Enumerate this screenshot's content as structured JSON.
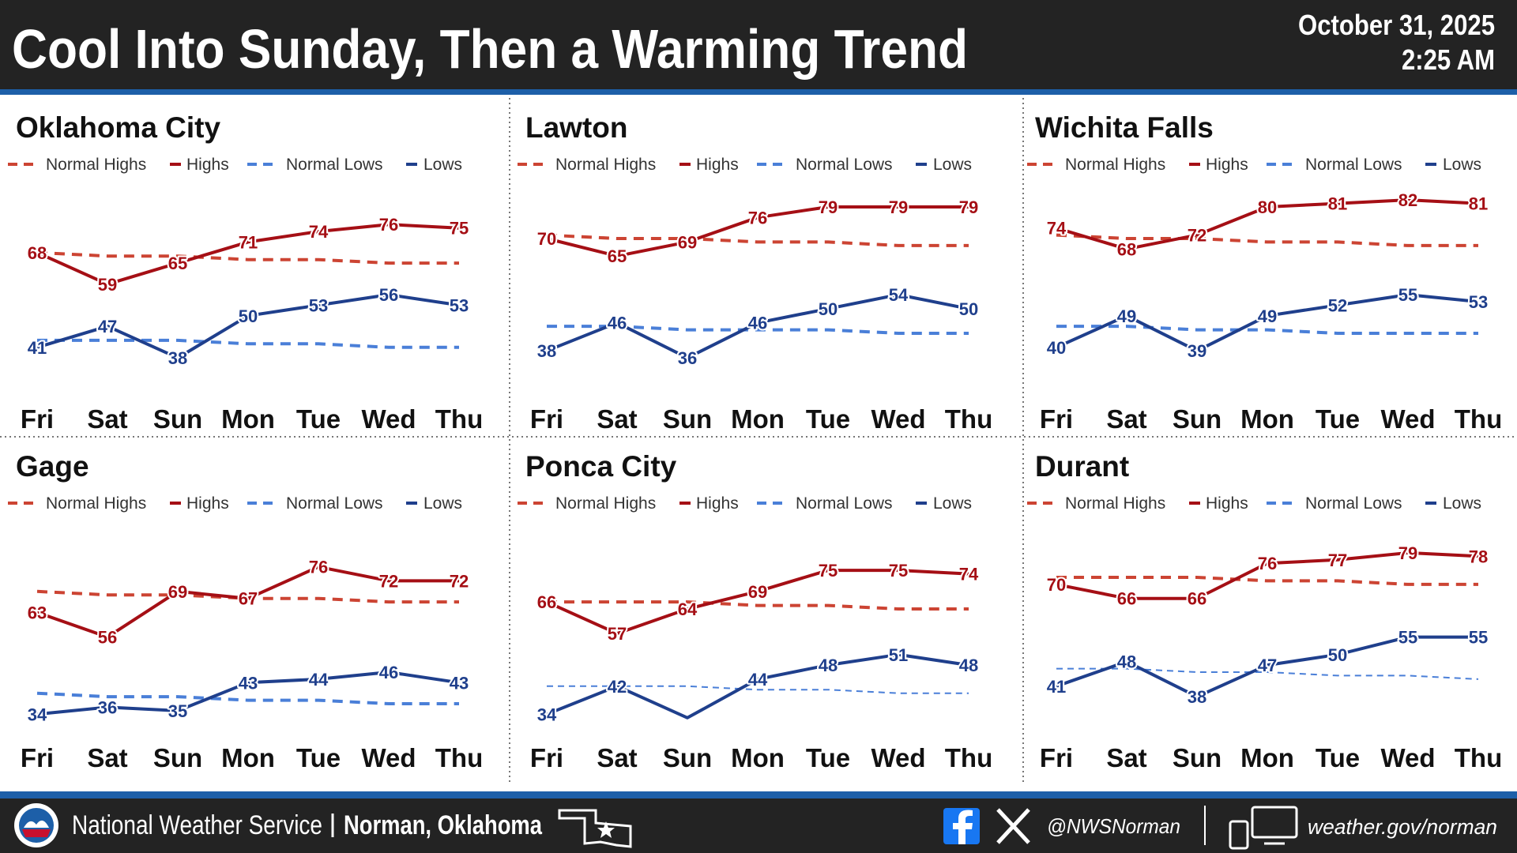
{
  "header": {
    "title": "Cool Into Sunday, Then a Warming Trend",
    "date": "October 31, 2025",
    "time": "2:25 AM"
  },
  "chart_data": [
    {
      "type": "line",
      "title": "Oklahoma City",
      "categories": [
        "Fri",
        "Sat",
        "Sun",
        "Mon",
        "Tue",
        "Wed",
        "Thu"
      ],
      "ylim": [
        36,
        90
      ],
      "series": [
        {
          "name": "Normal Highs",
          "color": "#cc4433",
          "style": "dashed",
          "values": [
            68,
            67,
            67,
            66,
            66,
            65,
            65
          ]
        },
        {
          "name": "Highs",
          "color": "#a50f15",
          "style": "solid",
          "values": [
            68,
            59,
            65,
            71,
            74,
            76,
            75
          ]
        },
        {
          "name": "Normal Lows",
          "color": "#4a7fd8",
          "style": "dashed",
          "values": [
            43,
            43,
            43,
            42,
            42,
            41,
            41
          ]
        },
        {
          "name": "Lows",
          "color": "#1f3f8c",
          "style": "solid",
          "values": [
            41,
            47,
            38,
            50,
            53,
            56,
            53
          ]
        }
      ]
    },
    {
      "type": "line",
      "title": "Lawton",
      "categories": [
        "Fri",
        "Sat",
        "Sun",
        "Mon",
        "Tue",
        "Wed",
        "Thu"
      ],
      "ylim": [
        34,
        88
      ],
      "series": [
        {
          "name": "Normal Highs",
          "color": "#cc4433",
          "style": "dashed",
          "values": [
            71,
            70,
            70,
            69,
            69,
            68,
            68
          ]
        },
        {
          "name": "Highs",
          "color": "#a50f15",
          "style": "solid",
          "values": [
            70,
            65,
            69,
            76,
            79,
            79,
            79
          ]
        },
        {
          "name": "Normal Lows",
          "color": "#4a7fd8",
          "style": "dashed",
          "values": [
            45,
            45,
            44,
            44,
            44,
            43,
            43
          ]
        },
        {
          "name": "Lows",
          "color": "#1f3f8c",
          "style": "solid",
          "values": [
            38,
            46,
            36,
            46,
            50,
            54,
            50
          ]
        }
      ]
    },
    {
      "type": "line",
      "title": "Wichita Falls",
      "categories": [
        "Fri",
        "Sat",
        "Sun",
        "Mon",
        "Tue",
        "Wed",
        "Thu"
      ],
      "ylim": [
        35,
        89
      ],
      "series": [
        {
          "name": "Normal Highs",
          "color": "#cc4433",
          "style": "dashed",
          "values": [
            72,
            71,
            71,
            70,
            70,
            69,
            69
          ]
        },
        {
          "name": "Highs",
          "color": "#a50f15",
          "style": "solid",
          "values": [
            74,
            68,
            72,
            80,
            81,
            82,
            81
          ]
        },
        {
          "name": "Normal Lows",
          "color": "#4a7fd8",
          "style": "dashed",
          "values": [
            46,
            46,
            45,
            45,
            44,
            44,
            44
          ]
        },
        {
          "name": "Lows",
          "color": "#1f3f8c",
          "style": "solid",
          "values": [
            40,
            49,
            39,
            49,
            52,
            55,
            53
          ]
        }
      ]
    },
    {
      "type": "line",
      "title": "Gage",
      "categories": [
        "Fri",
        "Sat",
        "Sun",
        "Mon",
        "Tue",
        "Wed",
        "Thu"
      ],
      "ylim": [
        37,
        91
      ],
      "series": [
        {
          "name": "Normal Highs",
          "color": "#cc4433",
          "style": "dashed",
          "values": [
            69,
            68,
            68,
            67,
            67,
            66,
            66
          ]
        },
        {
          "name": "Highs",
          "color": "#a50f15",
          "style": "solid",
          "values": [
            63,
            56,
            69,
            67,
            76,
            72,
            72
          ]
        },
        {
          "name": "Normal Lows",
          "color": "#4a7fd8",
          "style": "dashed",
          "values": [
            40,
            39,
            39,
            38,
            38,
            37,
            37
          ]
        },
        {
          "name": "Lows",
          "color": "#1f3f8c",
          "style": "solid",
          "values": [
            34,
            36,
            35,
            43,
            44,
            46,
            43
          ]
        }
      ]
    },
    {
      "type": "line",
      "title": "Ponca City",
      "categories": [
        "Fri",
        "Sat",
        "Sun",
        "Mon",
        "Tue",
        "Wed",
        "Thu"
      ],
      "ylim": [
        37,
        91
      ],
      "series": [
        {
          "name": "Normal Highs",
          "color": "#cc4433",
          "style": "dashed",
          "values": [
            66,
            66,
            66,
            65,
            65,
            64,
            64
          ]
        },
        {
          "name": "Highs",
          "color": "#a50f15",
          "style": "solid",
          "values": [
            66,
            57,
            64,
            69,
            75,
            75,
            74
          ]
        },
        {
          "name": "Normal Lows",
          "color": "#4a7fd8",
          "style": "dashed-thin",
          "values": [
            42,
            42,
            42,
            41,
            41,
            40,
            40
          ]
        },
        {
          "name": "Lows",
          "color": "#1f3f8c",
          "style": "solid",
          "values": [
            34,
            42,
            33,
            44,
            48,
            51,
            48
          ],
          "value_labels": [
            "34",
            "42",
            null,
            "44",
            "48",
            "51",
            "48"
          ]
        }
      ]
    },
    {
      "type": "line",
      "title": "Durant",
      "categories": [
        "Fri",
        "Sat",
        "Sun",
        "Mon",
        "Tue",
        "Wed",
        "Thu"
      ],
      "ylim": [
        36,
        90
      ],
      "series": [
        {
          "name": "Normal Highs",
          "color": "#cc4433",
          "style": "dashed",
          "values": [
            72,
            72,
            72,
            71,
            71,
            70,
            70
          ]
        },
        {
          "name": "Highs",
          "color": "#a50f15",
          "style": "solid",
          "values": [
            70,
            66,
            66,
            76,
            77,
            79,
            78
          ]
        },
        {
          "name": "Normal Lows",
          "color": "#4a7fd8",
          "style": "dashed-thin",
          "values": [
            46,
            46,
            45,
            45,
            44,
            44,
            43
          ]
        },
        {
          "name": "Lows",
          "color": "#1f3f8c",
          "style": "solid",
          "values": [
            41,
            48,
            38,
            47,
            50,
            55,
            55
          ]
        }
      ]
    }
  ],
  "footer": {
    "office": "National Weather Service",
    "location": "Norman, Oklahoma",
    "social": "@NWSNorman",
    "website": "weather.gov/norman"
  }
}
